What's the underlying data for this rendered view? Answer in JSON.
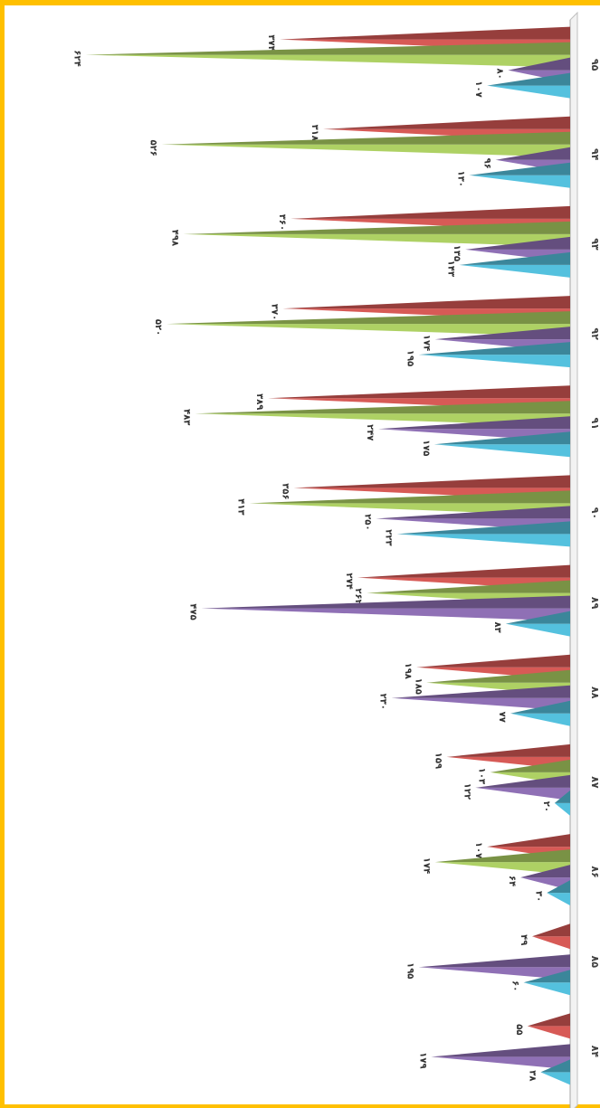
{
  "chart_data": {
    "type": "bar",
    "categories": [
      "۸۴",
      "۸۵",
      "۸۶",
      "۸۷",
      "۸۸",
      "۸۹",
      "۹۰",
      "۹۱",
      "۹۲",
      "۹۳",
      "۹۴",
      "۹۵"
    ],
    "series": [
      {
        "color": "#C0504D",
        "values": [
          55,
          49,
          107,
          159,
          198,
          274,
          356,
          389,
          370,
          360,
          318,
          374
        ],
        "labels": [
          "۵۵",
          "۴۹",
          "۱۰۷",
          "۱۵۹",
          "۱۹۸",
          "۲۷۴",
          "۳۵۶",
          "۳۸۹",
          "۳۷۰",
          "۳۶۰",
          "۳۱۸",
          "۳۷۴"
        ]
      },
      {
        "color": "#9BBB59",
        "values": [
          null,
          null,
          174,
          103,
          185,
          262,
          413,
          483,
          520,
          498,
          526,
          624
        ],
        "labels": [
          "",
          "",
          "۱۷۴",
          "۱۰۳",
          "۱۸۵",
          "۲۶۲",
          "۴۱۳",
          "۴۸۳",
          "۵۲۰",
          "۴۹۸",
          "۵۲۶",
          "۶۲۴"
        ]
      },
      {
        "color": "#8064A2",
        "values": [
          179,
          195,
          64,
          122,
          230,
          475,
          250,
          247,
          174,
          135,
          96,
          80
        ],
        "labels": [
          "۱۷۹",
          "۱۹۵",
          "۶۴",
          "۱۲۲",
          "۲۳۰",
          "۴۷۵",
          "۲۵۰",
          "۲۴۷",
          "۱۷۴",
          "۱۳۵",
          "۹۶",
          "۸۰"
        ]
      },
      {
        "color": "#4BACC6",
        "values": [
          38,
          60,
          30,
          20,
          77,
          83,
          223,
          175,
          195,
          143,
          130,
          107
        ],
        "labels": [
          "۳۸",
          "۶۰",
          "۳۰",
          "۲۰",
          "۷۷",
          "۸۳",
          "۲۲۳",
          "۱۷۵",
          "۱۹۵",
          "۱۴۳",
          "۱۳۰",
          "۱۰۷"
        ]
      }
    ],
    "orientation": "rotated 90° clockwise",
    "ylim": [
      0,
      700
    ],
    "grid": false,
    "legend": "none"
  }
}
